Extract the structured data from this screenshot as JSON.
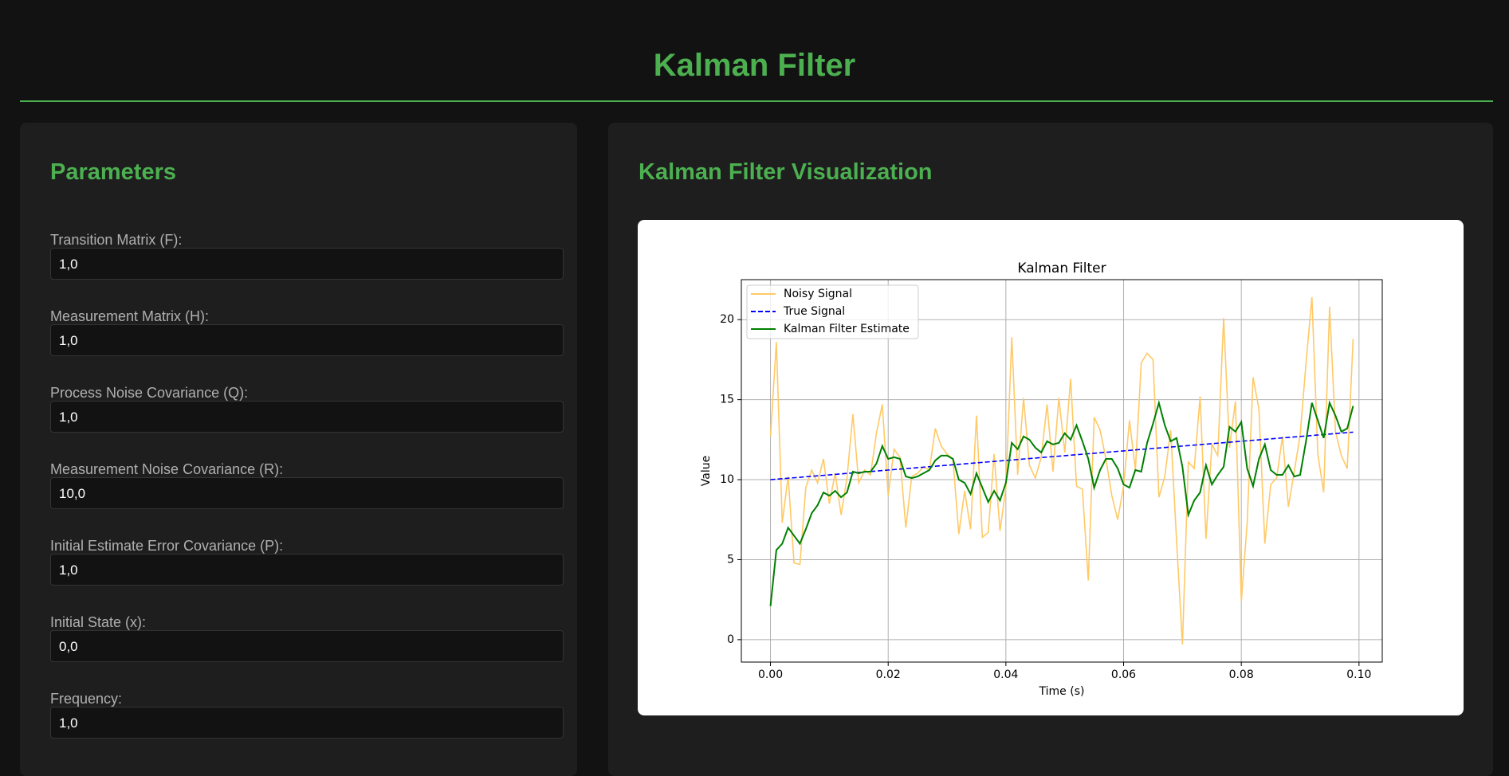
{
  "header": {
    "title": "Kalman Filter"
  },
  "parameters": {
    "title": "Parameters",
    "fields": [
      {
        "label": "Transition Matrix (F):",
        "value": "1,0"
      },
      {
        "label": "Measurement Matrix (H):",
        "value": "1,0"
      },
      {
        "label": "Process Noise Covariance (Q):",
        "value": "1,0"
      },
      {
        "label": "Measurement Noise Covariance (R):",
        "value": "10,0"
      },
      {
        "label": "Initial Estimate Error Covariance (P):",
        "value": "1,0"
      },
      {
        "label": "Initial State (x):",
        "value": "0,0"
      },
      {
        "label": "Frequency:",
        "value": "1,0"
      }
    ]
  },
  "visualization": {
    "title": "Kalman Filter Visualization"
  },
  "chart_data": {
    "type": "line",
    "title": "Kalman Filter",
    "x_label": "Time (s)",
    "y_label": "Value",
    "grid": true,
    "legend": "upper left",
    "x": [
      0,
      0.001,
      0.002,
      0.003,
      0.004,
      0.005,
      0.006,
      0.007,
      0.008,
      0.009,
      0.01,
      0.011,
      0.012,
      0.013,
      0.014,
      0.015,
      0.016,
      0.017,
      0.018,
      0.019,
      0.02,
      0.021,
      0.022,
      0.023,
      0.024,
      0.025,
      0.026,
      0.027,
      0.028,
      0.029,
      0.03,
      0.031,
      0.032,
      0.033,
      0.034,
      0.035,
      0.036,
      0.037,
      0.038,
      0.039,
      0.04,
      0.041,
      0.042,
      0.043,
      0.044,
      0.045,
      0.046,
      0.047,
      0.048,
      0.049,
      0.05,
      0.051,
      0.052,
      0.053,
      0.054,
      0.055,
      0.056,
      0.057,
      0.058,
      0.059,
      0.06,
      0.061,
      0.062,
      0.063,
      0.064,
      0.065,
      0.066,
      0.067,
      0.068,
      0.069,
      0.07,
      0.071,
      0.072,
      0.073,
      0.074,
      0.075,
      0.076,
      0.077,
      0.078,
      0.079,
      0.08,
      0.081,
      0.082,
      0.083,
      0.084,
      0.085,
      0.086,
      0.087,
      0.088,
      0.089,
      0.09,
      0.091,
      0.092,
      0.093,
      0.094,
      0.095,
      0.096,
      0.097,
      0.098,
      0.099
    ],
    "series": [
      {
        "name": "Noisy Signal",
        "color": "#ffc966",
        "linestyle": "solid",
        "values": [
          12.7,
          18.6,
          7.3,
          10.2,
          4.8,
          4.7,
          9.5,
          10.6,
          9.8,
          11.3,
          8.5,
          10.4,
          7.8,
          10.1,
          14.1,
          9.8,
          10.6,
          10.3,
          12.9,
          14.7,
          9.0,
          11.9,
          11.4,
          7.0,
          10.2,
          10.4,
          10.8,
          10.6,
          13.2,
          12.1,
          11.6,
          11.3,
          6.6,
          9.3,
          6.9,
          14.0,
          6.4,
          6.7,
          11.6,
          6.8,
          9.5,
          18.9,
          10.3,
          15.1,
          10.9,
          10.1,
          11.4,
          14.7,
          10.5,
          15.1,
          11.7,
          16.3,
          9.6,
          9.4,
          3.7,
          13.9,
          13.1,
          11.3,
          9.0,
          7.5,
          9.6,
          13.7,
          10.6,
          17.3,
          17.9,
          17.5,
          8.9,
          10.2,
          13.1,
          6.2,
          -0.3,
          11.1,
          10.7,
          15.2,
          6.3,
          12.2,
          11.5,
          20.1,
          12.0,
          14.9,
          2.4,
          7.3,
          16.4,
          14.4,
          6.0,
          9.7,
          10.1,
          12.7,
          8.3,
          10.5,
          12.8,
          17.3,
          21.4,
          11.6,
          9.2,
          20.8,
          13.0,
          11.5,
          10.7,
          18.8
        ]
      },
      {
        "name": "True Signal",
        "color": "#0000ff",
        "linestyle": "dashed",
        "values": [
          10,
          10.03,
          10.06,
          10.09,
          10.12,
          10.15,
          10.18,
          10.21,
          10.24,
          10.27,
          10.3,
          10.33,
          10.36,
          10.39,
          10.42,
          10.45,
          10.48,
          10.51,
          10.54,
          10.57,
          10.6,
          10.63,
          10.66,
          10.69,
          10.72,
          10.75,
          10.78,
          10.81,
          10.84,
          10.87,
          10.9,
          10.93,
          10.96,
          10.99,
          11.02,
          11.05,
          11.08,
          11.11,
          11.14,
          11.17,
          11.2,
          11.23,
          11.26,
          11.29,
          11.32,
          11.35,
          11.38,
          11.41,
          11.44,
          11.47,
          11.5,
          11.53,
          11.56,
          11.59,
          11.62,
          11.65,
          11.68,
          11.71,
          11.74,
          11.77,
          11.8,
          11.83,
          11.86,
          11.89,
          11.92,
          11.95,
          11.98,
          12.01,
          12.04,
          12.07,
          12.1,
          12.13,
          12.16,
          12.19,
          12.22,
          12.25,
          12.28,
          12.31,
          12.34,
          12.37,
          12.4,
          12.43,
          12.46,
          12.49,
          12.52,
          12.55,
          12.58,
          12.61,
          12.64,
          12.67,
          12.7,
          12.73,
          12.76,
          12.79,
          12.82,
          12.85,
          12.88,
          12.91,
          12.94,
          12.97
        ]
      },
      {
        "name": "Kalman Filter Estimate",
        "color": "#008000",
        "linestyle": "solid",
        "values": [
          2.1,
          5.6,
          6.0,
          7.0,
          6.5,
          6.0,
          6.9,
          7.9,
          8.4,
          9.2,
          9.0,
          9.3,
          8.9,
          9.2,
          10.5,
          10.4,
          10.5,
          10.5,
          11.0,
          12.1,
          11.3,
          11.4,
          11.3,
          10.2,
          10.1,
          10.2,
          10.4,
          10.6,
          11.2,
          11.5,
          11.5,
          11.3,
          10.0,
          9.8,
          9.1,
          10.4,
          9.5,
          8.6,
          9.3,
          8.7,
          9.8,
          12.3,
          11.9,
          12.7,
          12.5,
          12.0,
          11.7,
          12.4,
          12.2,
          12.3,
          12.9,
          12.5,
          13.4,
          12.4,
          11.3,
          9.5,
          10.6,
          11.3,
          11.3,
          10.7,
          9.7,
          9.5,
          10.6,
          10.5,
          12.3,
          13.5,
          14.8,
          13.4,
          12.4,
          12.6,
          10.8,
          7.8,
          8.7,
          9.2,
          10.9,
          9.7,
          10.3,
          10.8,
          13.3,
          13.0,
          13.6,
          10.7,
          9.6,
          11.3,
          12.2,
          10.6,
          10.3,
          10.3,
          10.9,
          10.2,
          10.3,
          12.4,
          14.8,
          13.7,
          12.6,
          14.8,
          14.0,
          13.0,
          13.2,
          14.6
        ]
      }
    ],
    "xlim": [
      -0.00495,
      0.10395
    ],
    "ylim": [
      -1.4,
      22.5
    ],
    "xticks": [
      {
        "value": 0,
        "label": "0.00"
      },
      {
        "value": 0.02,
        "label": "0.02"
      },
      {
        "value": 0.04,
        "label": "0.04"
      },
      {
        "value": 0.06,
        "label": "0.06"
      },
      {
        "value": 0.08,
        "label": "0.08"
      },
      {
        "value": 0.1,
        "label": "0.10"
      }
    ],
    "yticks": [
      0,
      5,
      10,
      15,
      20
    ]
  }
}
